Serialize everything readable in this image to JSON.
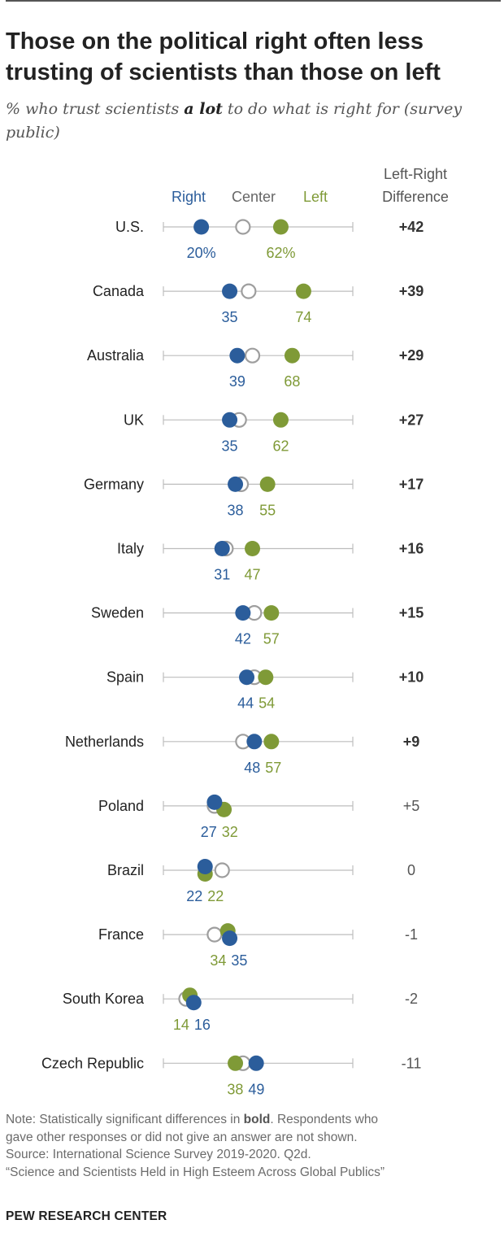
{
  "title": "Those on the political right often less trusting of scientists than those on left",
  "subtitle": {
    "pre": "% who trust scientists ",
    "bold": "a lot",
    "post": " to do what is right for (survey public)"
  },
  "legend": {
    "right": "Right",
    "center": "Center",
    "left": "Left"
  },
  "diff_header": [
    "Left-Right",
    "Difference"
  ],
  "colors": {
    "right": "#2b5d9b",
    "left": "#7f9a37",
    "center": "#9e9e9e",
    "axis": "#bdbdbd",
    "label": "#222222"
  },
  "chart_data": {
    "type": "dot-plot",
    "xlim": [
      0,
      100
    ],
    "series": [
      {
        "name": "Right"
      },
      {
        "name": "Center"
      },
      {
        "name": "Left"
      }
    ],
    "rows": [
      {
        "country": "U.S.",
        "right": 20,
        "left": 62,
        "right_label": "20%",
        "left_label": "62%",
        "diff": "+42",
        "significant": true,
        "center": 42
      },
      {
        "country": "Canada",
        "right": 35,
        "left": 74,
        "right_label": "35",
        "left_label": "74",
        "diff": "+39",
        "significant": true,
        "center": 45
      },
      {
        "country": "Australia",
        "right": 39,
        "left": 68,
        "right_label": "39",
        "left_label": "68",
        "diff": "+29",
        "significant": true,
        "center": 47
      },
      {
        "country": "UK",
        "right": 35,
        "left": 62,
        "right_label": "35",
        "left_label": "62",
        "diff": "+27",
        "significant": true,
        "center": 40
      },
      {
        "country": "Germany",
        "right": 38,
        "left": 55,
        "right_label": "38",
        "left_label": "55",
        "diff": "+17",
        "significant": true,
        "center": 41
      },
      {
        "country": "Italy",
        "right": 31,
        "left": 47,
        "right_label": "31",
        "left_label": "47",
        "diff": "+16",
        "significant": true,
        "center": 33
      },
      {
        "country": "Sweden",
        "right": 42,
        "left": 57,
        "right_label": "42",
        "left_label": "57",
        "diff": "+15",
        "significant": true,
        "center": 48
      },
      {
        "country": "Spain",
        "right": 44,
        "left": 54,
        "right_label": "44",
        "left_label": "54",
        "diff": "+10",
        "significant": true,
        "center": 48
      },
      {
        "country": "Netherlands",
        "right": 48,
        "left": 57,
        "right_label": "48",
        "left_label": "57",
        "diff": "+9",
        "significant": true,
        "center": 42
      },
      {
        "country": "Poland",
        "right": 27,
        "left": 32,
        "right_label": "27",
        "left_label": "32",
        "diff": "+5",
        "significant": false,
        "center": 27
      },
      {
        "country": "Brazil",
        "right": 22,
        "left": 22,
        "right_label": "22",
        "left_label": "22",
        "diff": "0",
        "significant": false,
        "center": 31
      },
      {
        "country": "France",
        "right": 35,
        "left": 34,
        "right_label": "35",
        "left_label": "34",
        "diff": "-1",
        "significant": false,
        "center": 27
      },
      {
        "country": "South Korea",
        "right": 16,
        "left": 14,
        "right_label": "16",
        "left_label": "14",
        "diff": "-2",
        "significant": false,
        "center": 12
      },
      {
        "country": "Czech Republic",
        "right": 49,
        "left": 38,
        "right_label": "49",
        "left_label": "38",
        "diff": "-11",
        "significant": false,
        "center": 42
      }
    ]
  },
  "notes": {
    "line1_pre": "Note: Statistically significant differences in ",
    "line1_bold": "bold",
    "line1_post": ". Respondents who",
    "line2": "gave other responses or did not give an answer are not shown.",
    "line3": "Source: International Science Survey 2019-2020. Q2d.",
    "line4": "“Science and Scientists Held in High Esteem Across Global Publics”"
  },
  "brand": "PEW RESEARCH CENTER"
}
